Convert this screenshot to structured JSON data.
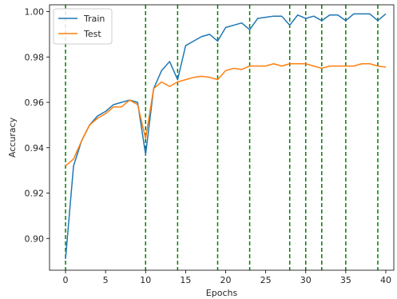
{
  "chart_data": {
    "type": "line",
    "title": "",
    "xlabel": "Epochs",
    "ylabel": "Accuracy",
    "xlim": [
      -2,
      41
    ],
    "ylim": [
      0.886,
      1.003
    ],
    "xticks": [
      0,
      5,
      10,
      15,
      20,
      25,
      30,
      35,
      40
    ],
    "yticks": [
      0.9,
      0.92,
      0.94,
      0.96,
      0.98,
      1.0
    ],
    "ytick_labels": [
      "0.90",
      "0.92",
      "0.94",
      "0.96",
      "0.98",
      "1.00"
    ],
    "grid": false,
    "legend": "top-left",
    "vlines": [
      0,
      10,
      14,
      19,
      23,
      28,
      30,
      32,
      35,
      39
    ],
    "vline_color": "#008000",
    "series": [
      {
        "name": "Train",
        "color": "#1f77b4",
        "x": [
          0,
          1,
          2,
          3,
          4,
          5,
          6,
          7,
          8,
          9,
          10,
          11,
          12,
          13,
          14,
          15,
          16,
          17,
          18,
          19,
          20,
          21,
          22,
          23,
          24,
          25,
          26,
          27,
          28,
          29,
          30,
          31,
          32,
          33,
          34,
          35,
          36,
          37,
          38,
          39,
          40
        ],
        "y": [
          0.891,
          0.932,
          0.943,
          0.95,
          0.954,
          0.956,
          0.959,
          0.96,
          0.961,
          0.96,
          0.937,
          0.966,
          0.974,
          0.978,
          0.97,
          0.985,
          0.987,
          0.989,
          0.99,
          0.987,
          0.993,
          0.994,
          0.995,
          0.992,
          0.997,
          0.9975,
          0.998,
          0.998,
          0.994,
          0.9985,
          0.997,
          0.998,
          0.996,
          0.9985,
          0.9985,
          0.996,
          0.999,
          0.999,
          0.999,
          0.996,
          0.999
        ]
      },
      {
        "name": "Test",
        "color": "#ff7f0e",
        "x": [
          0,
          1,
          2,
          3,
          4,
          5,
          6,
          7,
          8,
          9,
          10,
          11,
          12,
          13,
          14,
          15,
          16,
          17,
          18,
          19,
          20,
          21,
          22,
          23,
          24,
          25,
          26,
          27,
          28,
          29,
          30,
          31,
          32,
          33,
          34,
          35,
          36,
          37,
          38,
          39,
          40
        ],
        "y": [
          0.932,
          0.935,
          0.943,
          0.95,
          0.953,
          0.955,
          0.958,
          0.958,
          0.961,
          0.959,
          0.944,
          0.966,
          0.969,
          0.967,
          0.969,
          0.97,
          0.971,
          0.9715,
          0.971,
          0.97,
          0.974,
          0.975,
          0.9745,
          0.976,
          0.976,
          0.976,
          0.977,
          0.976,
          0.977,
          0.977,
          0.977,
          0.976,
          0.975,
          0.976,
          0.976,
          0.976,
          0.976,
          0.977,
          0.977,
          0.976,
          0.9755
        ]
      }
    ]
  }
}
